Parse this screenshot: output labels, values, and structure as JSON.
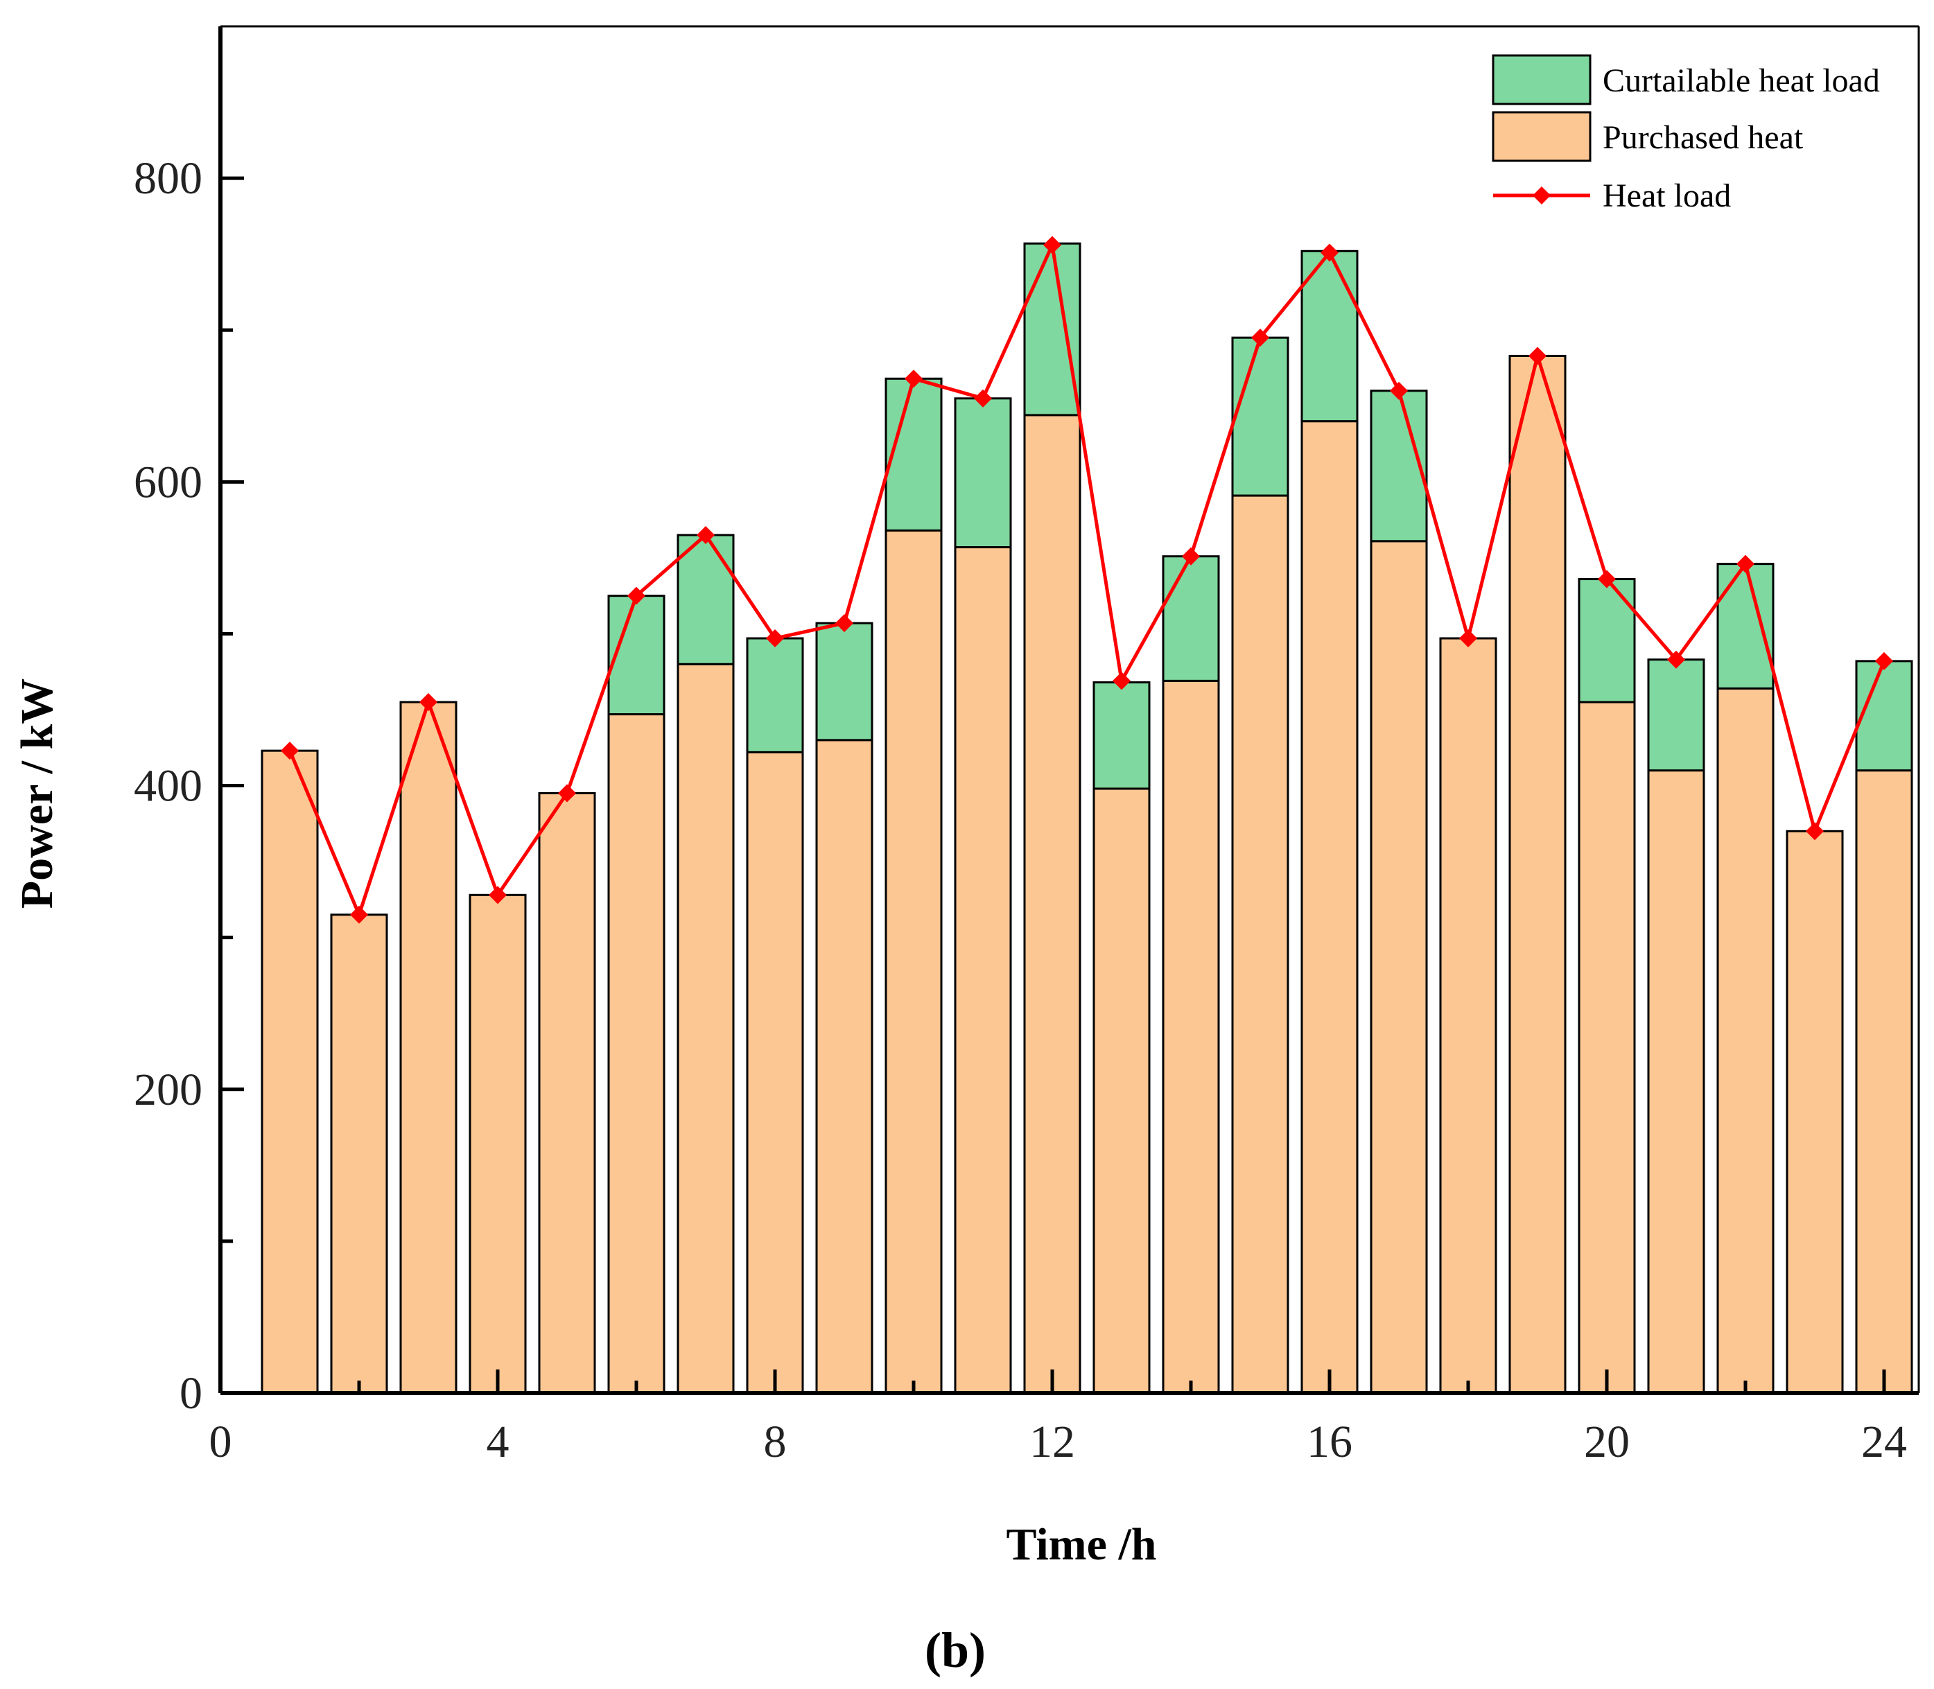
{
  "chart_data": {
    "type": "bar",
    "stacked": true,
    "title": "",
    "subfigure_label": "(b)",
    "xlabel": "Time /h",
    "ylabel": "Power / kW",
    "xlim": [
      0,
      24.5
    ],
    "ylim": [
      0,
      900
    ],
    "x_ticks": [
      0,
      4,
      8,
      12,
      16,
      20,
      24
    ],
    "y_ticks": [
      0,
      200,
      400,
      600,
      800
    ],
    "legend_position": "top-right",
    "x": [
      1,
      2,
      3,
      4,
      5,
      6,
      7,
      8,
      9,
      10,
      11,
      12,
      13,
      14,
      15,
      16,
      17,
      18,
      19,
      20,
      21,
      22,
      23,
      24
    ],
    "series": [
      {
        "name": "Purchased heat",
        "kind": "bar",
        "color": "#fdc793",
        "values": [
          423,
          315,
          455,
          328,
          395,
          447,
          480,
          422,
          430,
          568,
          557,
          644,
          398,
          469,
          591,
          640,
          561,
          497,
          683,
          455,
          410,
          464,
          370,
          410
        ]
      },
      {
        "name": "Curtailable heat load",
        "kind": "bar",
        "color": "#7fd89f",
        "values": [
          0,
          0,
          0,
          0,
          0,
          78,
          85,
          75,
          77,
          100,
          98,
          113,
          70,
          82,
          104,
          112,
          99,
          0,
          0,
          81,
          73,
          82,
          0,
          72
        ]
      },
      {
        "name": "Heat load",
        "kind": "line",
        "color": "#ff0000",
        "values": [
          423,
          315,
          455,
          328,
          395,
          525,
          565,
          497,
          507,
          668,
          655,
          756,
          469,
          551,
          695,
          751,
          660,
          497,
          683,
          536,
          483,
          546,
          370,
          482
        ]
      }
    ]
  }
}
